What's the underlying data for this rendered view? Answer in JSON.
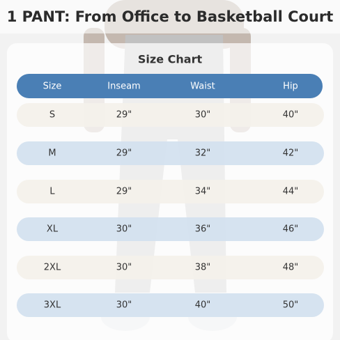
{
  "header": {
    "title": "1 PANT: From Office to Basketball Court"
  },
  "table": {
    "title": "Size Chart",
    "columns": [
      "Size",
      "Inseam",
      "Waist",
      "Hip"
    ],
    "rows": [
      [
        "S",
        "29\"",
        "30\"",
        "40\""
      ],
      [
        "M",
        "29\"",
        "32\"",
        "42\""
      ],
      [
        "L",
        "29\"",
        "34\"",
        "44\""
      ],
      [
        "XL",
        "30\"",
        "36\"",
        "46\""
      ],
      [
        "2XL",
        "30\"",
        "38\"",
        "48\""
      ],
      [
        "3XL",
        "30\"",
        "40\"",
        "50\""
      ]
    ]
  }
}
